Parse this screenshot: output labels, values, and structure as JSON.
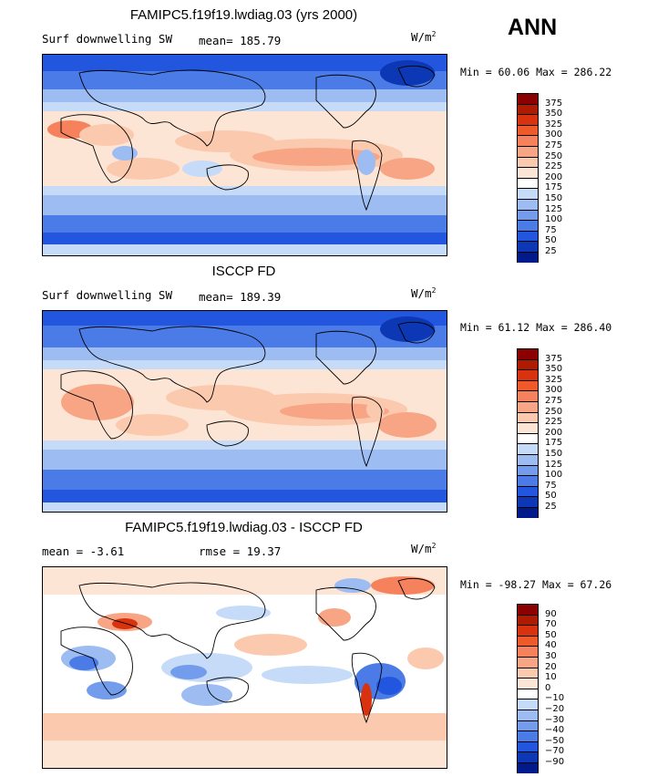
{
  "season": "ANN",
  "panels": [
    {
      "title": "FAMIPC5.f19f19.lwdiag.03 (yrs 2000)",
      "left_label": "Surf downwelling SW",
      "stat_label": "mean= 185.79",
      "units": "W/m",
      "units_sup": "2",
      "minmax": "Min =  60.06 Max = 286.22",
      "colorbar": {
        "labels": [
          "375",
          "350",
          "325",
          "300",
          "275",
          "250",
          "225",
          "200",
          "175",
          "150",
          "125",
          "100",
          "75",
          "50",
          "25"
        ],
        "colors": [
          "#8b0000",
          "#b01a00",
          "#d8320e",
          "#ef5a2a",
          "#f5825c",
          "#f8a585",
          "#fbc9ae",
          "#fde5d6",
          "#ffffff",
          "#c6dbf7",
          "#9cbcf2",
          "#739ced",
          "#4a7be6",
          "#2256de",
          "#0d38b5",
          "#001a8c"
        ]
      }
    },
    {
      "title": "ISCCP FD",
      "left_label": "Surf downwelling SW",
      "stat_label": "mean= 189.39",
      "units": "W/m",
      "units_sup": "2",
      "minmax": "Min =  61.12 Max = 286.40",
      "colorbar": {
        "labels": [
          "375",
          "350",
          "325",
          "300",
          "275",
          "250",
          "225",
          "200",
          "175",
          "150",
          "125",
          "100",
          "75",
          "50",
          "25"
        ],
        "colors": [
          "#8b0000",
          "#b01a00",
          "#d8320e",
          "#ef5a2a",
          "#f5825c",
          "#f8a585",
          "#fbc9ae",
          "#fde5d6",
          "#ffffff",
          "#c6dbf7",
          "#9cbcf2",
          "#739ced",
          "#4a7be6",
          "#2256de",
          "#0d38b5",
          "#001a8c"
        ]
      }
    },
    {
      "title": "FAMIPC5.f19f19.lwdiag.03 - ISCCP FD",
      "left_label": "mean =   -3.61",
      "stat_label": "rmse =   19.37",
      "units": "W/m",
      "units_sup": "2",
      "minmax": "Min = -98.27 Max =  67.26",
      "colorbar": {
        "labels": [
          "90",
          "70",
          "50",
          "40",
          "30",
          "20",
          "10",
          "0",
          "−10",
          "−20",
          "−30",
          "−40",
          "−50",
          "−70",
          "−90"
        ],
        "colors": [
          "#8b0000",
          "#b01a00",
          "#d8320e",
          "#ef5a2a",
          "#f5825c",
          "#f8a585",
          "#fbc9ae",
          "#fde5d6",
          "#ffffff",
          "#c6dbf7",
          "#9cbcf2",
          "#739ced",
          "#4a7be6",
          "#2256de",
          "#0d38b5",
          "#001a8c"
        ]
      }
    }
  ]
}
